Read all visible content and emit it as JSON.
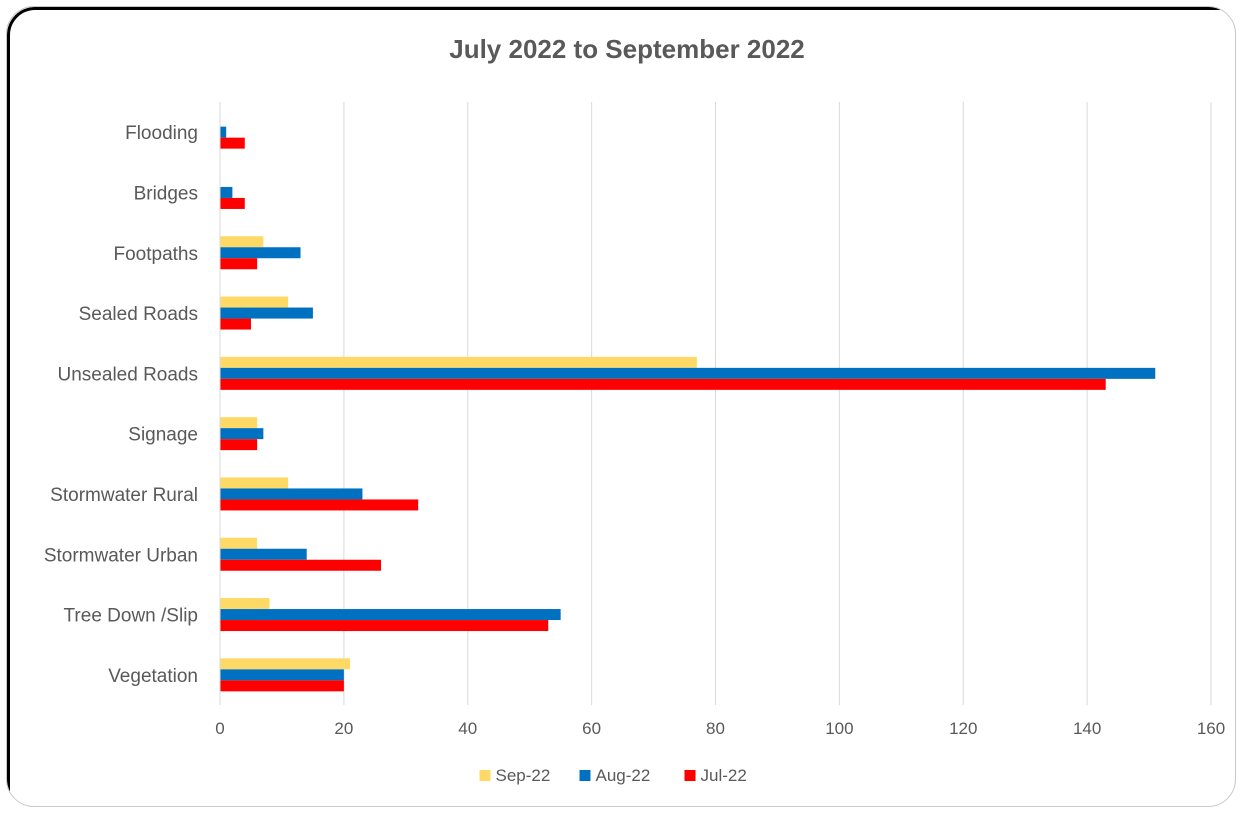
{
  "chart_data": {
    "type": "bar",
    "orientation": "horizontal",
    "title": "July 2022 to September 2022",
    "xlabel": "",
    "ylabel": "",
    "xlim": [
      0,
      160
    ],
    "x_ticks": [
      "0",
      "20",
      "40",
      "60",
      "80",
      "100",
      "120",
      "140",
      "160"
    ],
    "grid": "vertical",
    "legend_position": "bottom",
    "categories": [
      "Flooding",
      "Bridges",
      "Footpaths",
      "Sealed Roads",
      "Unsealed Roads",
      "Signage",
      "Stormwater Rural",
      "Stormwater Urban",
      "Tree Down /Slip",
      "Vegetation"
    ],
    "series": [
      {
        "name": "Sep-22",
        "color": "#FFD966",
        "values": [
          0,
          0,
          7,
          11,
          77,
          6,
          11,
          6,
          8,
          21
        ]
      },
      {
        "name": "Aug-22",
        "color": "#0070C0",
        "values": [
          1,
          2,
          13,
          15,
          151,
          7,
          23,
          14,
          55,
          20
        ]
      },
      {
        "name": "Jul-22",
        "color": "#FF0000",
        "values": [
          4,
          4,
          6,
          5,
          143,
          6,
          32,
          26,
          53,
          20
        ]
      }
    ]
  }
}
